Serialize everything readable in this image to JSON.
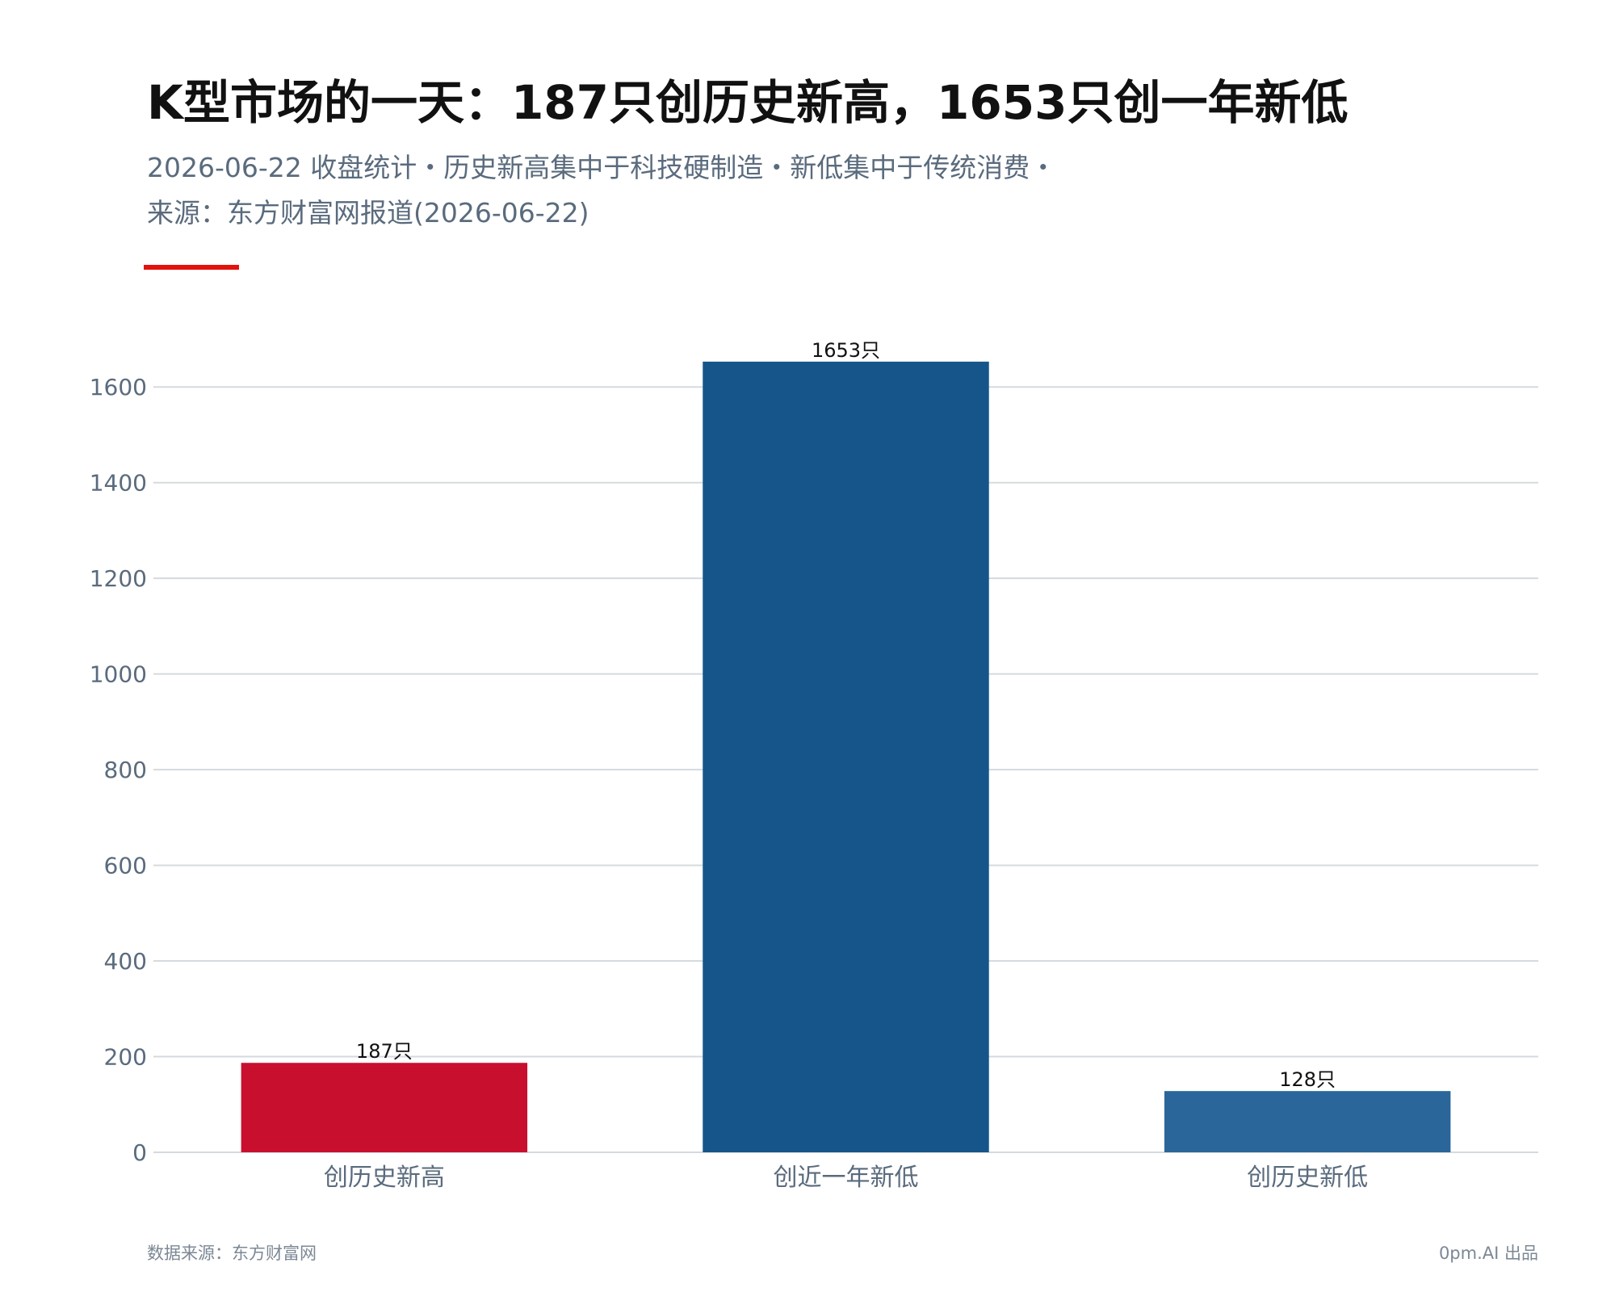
{
  "title": "K型市场的一天：187只创历史新高，1653只创一年新低",
  "subtitle_lines": [
    "2026-06-22 收盘统计・历史新高集中于科技硬制造・新低集中于传统消费・",
    "来源：东方财富网报道(2026-06-22)"
  ],
  "accent_color": "#e3120b",
  "footer": {
    "source": "数据来源：东方财富网",
    "credit": "0pm.AI 出品"
  },
  "chart_data": {
    "type": "bar",
    "categories": [
      "创历史新高",
      "创近一年新低",
      "创历史新低"
    ],
    "values": [
      187,
      1653,
      128
    ],
    "data_labels": [
      "187只",
      "1653只",
      "128只"
    ],
    "colors": [
      "#c8102e",
      "#15558a",
      "#2a6699"
    ],
    "ylim": [
      0,
      1700
    ],
    "yticks": [
      0,
      200,
      400,
      600,
      800,
      1000,
      1200,
      1400,
      1600
    ],
    "grid": true,
    "grid_color": "#d5dade",
    "xlabel": "",
    "ylabel": ""
  }
}
